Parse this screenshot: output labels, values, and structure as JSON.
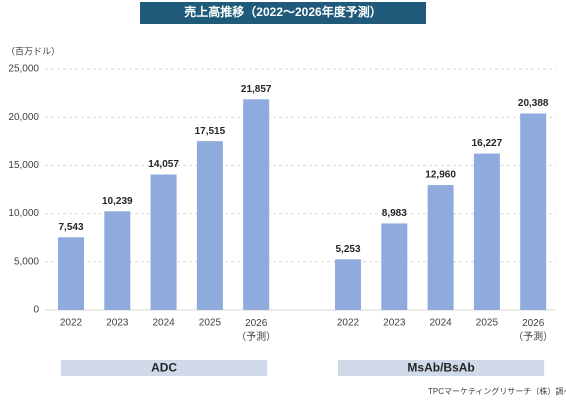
{
  "chart_data": {
    "type": "bar",
    "title": "売上高推移（2022～2026年度予測）",
    "y_unit": "（百万ドル）",
    "ylim": [
      0,
      25000
    ],
    "yticks": [
      0,
      {
        "value": 5000,
        "label": "5,000"
      },
      {
        "value": 10000,
        "label": "10,000"
      },
      {
        "value": 15000,
        "label": "15,000"
      },
      {
        "value": 20000,
        "label": "20,000"
      },
      {
        "value": 25000,
        "label": "25,000"
      }
    ],
    "grid": true,
    "color": "#8faadc",
    "groups": [
      {
        "name": "ADC",
        "categories": [
          "2022",
          "2023",
          "2024",
          "2025",
          "2026\n（予測）"
        ],
        "values": [
          7543,
          10239,
          14057,
          17515,
          21857
        ],
        "value_labels": [
          "7,543",
          "10,239",
          "14,057",
          "17,515",
          "21,857"
        ]
      },
      {
        "name": "MsAb/BsAb",
        "categories": [
          "2022",
          "2023",
          "2024",
          "2025",
          "2026\n（予測）"
        ],
        "values": [
          5253,
          8983,
          12960,
          16227,
          20388
        ],
        "value_labels": [
          "5,253",
          "8,983",
          "12,960",
          "16,227",
          "20,388"
        ]
      }
    ],
    "source": "TPCマーケティングリサーチ（株）調べ"
  }
}
